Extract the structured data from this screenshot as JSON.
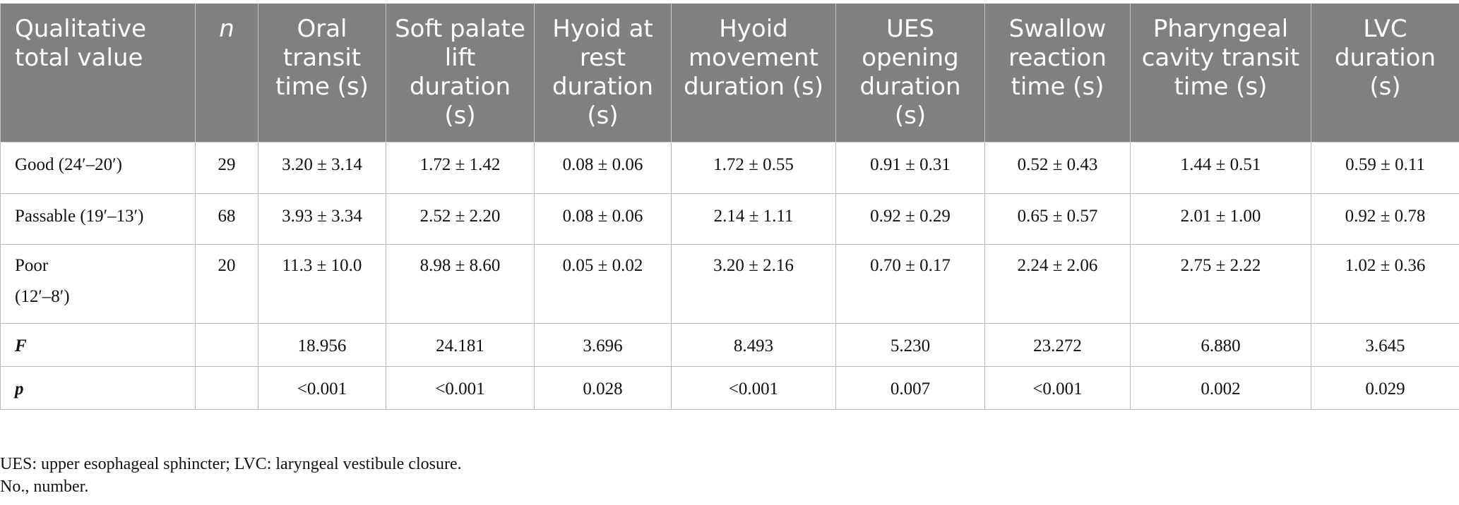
{
  "headers": [
    "Qualitative total value",
    "n",
    "Oral transit time (s)",
    "Soft palate lift duration (s)",
    "Hyoid at rest duration (s)",
    "Hyoid movement duration (s)",
    "UES opening duration (s)",
    "Swallow reaction time (s)",
    "Pharyngeal cavity transit time (s)",
    "LVC duration (s)"
  ],
  "rows": [
    {
      "label": "Good (24′–20′)",
      "n": "29",
      "values": [
        "3.20 ± 3.14",
        "1.72 ± 1.42",
        "0.08 ± 0.06",
        "1.72 ± 0.55",
        "0.91 ± 0.31",
        "0.52 ± 0.43",
        "1.44 ± 0.51",
        "0.59 ± 0.11"
      ]
    },
    {
      "label": "Passable (19′–13′)",
      "n": "68",
      "values": [
        "3.93 ± 3.34",
        "2.52 ± 2.20",
        "0.08 ± 0.06",
        "2.14 ± 1.11",
        "0.92 ± 0.29",
        "0.65 ± 0.57",
        "2.01 ± 1.00",
        "0.92 ± 0.78"
      ]
    },
    {
      "label_line1": "Poor",
      "label_line2": "(12′–8′)",
      "n": "20",
      "values": [
        "11.3 ± 10.0",
        "8.98 ± 8.60",
        "0.05 ± 0.02",
        "3.20 ± 2.16",
        "0.70 ± 0.17",
        "2.24 ± 2.06",
        "2.75 ± 2.22",
        "1.02 ± 0.36"
      ]
    },
    {
      "label": "F",
      "n": "",
      "values": [
        "18.956",
        "24.181",
        "3.696",
        "8.493",
        "5.230",
        "23.272",
        "6.880",
        "3.645"
      ]
    },
    {
      "label": "p",
      "n": "",
      "values": [
        "<0.001",
        "<0.001",
        "0.028",
        "<0.001",
        "0.007",
        "<0.001",
        "0.002",
        "0.029"
      ]
    }
  ],
  "footnotes": [
    "UES: upper esophageal sphincter; LVC: laryngeal vestibule closure.",
    "No., number."
  ]
}
